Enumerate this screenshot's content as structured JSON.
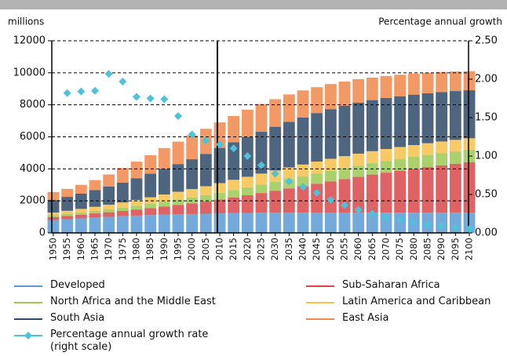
{
  "chart_data": {
    "type": "bar",
    "stacked": true,
    "y_label": "millions",
    "y2_label": "Percentage annual growth",
    "categories": [
      "1950",
      "1955",
      "1960",
      "1965",
      "1970",
      "1975",
      "1980",
      "1985",
      "1990",
      "1995",
      "2000",
      "2005",
      "2010",
      "2015",
      "2020",
      "2025",
      "2030",
      "2035",
      "2040",
      "2045",
      "2050",
      "2055",
      "2060",
      "2065",
      "2070",
      "2075",
      "2080",
      "2085",
      "2090",
      "2095",
      "2100"
    ],
    "ylim": [
      0,
      12000
    ],
    "yticks": [
      0,
      2000,
      4000,
      6000,
      8000,
      10000,
      12000
    ],
    "y2lim": [
      0,
      2.5
    ],
    "y2ticks": [
      {
        "value": 0,
        "label": "0.00"
      },
      {
        "value": 0.5,
        "label": "0.50"
      },
      {
        "value": 1,
        "label": "1.00"
      },
      {
        "value": 1.5,
        "label": "1.50"
      },
      {
        "value": 2,
        "label": "2.00"
      },
      {
        "value": 2.5,
        "label": "2.50"
      }
    ],
    "grid": true,
    "series": [
      {
        "name": "Developed",
        "color": "#5b9bd5",
        "values": [
          810,
          860,
          910,
          960,
          1000,
          1040,
          1080,
          1110,
          1140,
          1160,
          1180,
          1200,
          1220,
          1240,
          1250,
          1260,
          1265,
          1270,
          1270,
          1270,
          1270,
          1270,
          1270,
          1270,
          1265,
          1265,
          1260,
          1260,
          1260,
          1260,
          1260
        ]
      },
      {
        "name": "Sub-Saharan Africa",
        "color": "#d9474a",
        "values": [
          180,
          200,
          230,
          260,
          290,
          330,
          380,
          440,
          510,
          590,
          670,
          760,
          860,
          980,
          1100,
          1230,
          1370,
          1510,
          1650,
          1800,
          1950,
          2090,
          2230,
          2370,
          2500,
          2620,
          2740,
          2850,
          2960,
          3060,
          3160
        ]
      },
      {
        "name": "North Africa and the Middle East",
        "color": "#9cc952",
        "values": [
          110,
          125,
          140,
          160,
          180,
          205,
          235,
          270,
          300,
          335,
          365,
          395,
          430,
          465,
          500,
          535,
          565,
          595,
          620,
          645,
          665,
          685,
          700,
          715,
          730,
          740,
          750,
          760,
          765,
          770,
          775
        ]
      },
      {
        "name": "Latin America and Caribbean",
        "color": "#f6c14a",
        "values": [
          170,
          195,
          220,
          250,
          290,
          325,
          365,
          405,
          445,
          485,
          525,
          560,
          600,
          630,
          655,
          680,
          700,
          715,
          730,
          740,
          745,
          750,
          750,
          750,
          745,
          740,
          735,
          730,
          725,
          720,
          715
        ]
      },
      {
        "name": "South Asia",
        "color": "#2f4a68",
        "values": [
          800,
          870,
          950,
          1040,
          1140,
          1240,
          1350,
          1470,
          1600,
          1730,
          1860,
          2020,
          2200,
          2340,
          2480,
          2610,
          2730,
          2840,
          2940,
          3030,
          3100,
          3150,
          3180,
          3190,
          3190,
          3170,
          3150,
          3120,
          3090,
          3050,
          3000
        ]
      },
      {
        "name": "East Asia",
        "color": "#f0874a",
        "values": [
          480,
          500,
          550,
          630,
          750,
          910,
          1040,
          1155,
          1305,
          1400,
          1500,
          1565,
          1590,
          1645,
          1715,
          1735,
          1720,
          1720,
          1690,
          1615,
          1570,
          1505,
          1470,
          1405,
          1370,
          1345,
          1315,
          1280,
          1250,
          1220,
          1190
        ]
      },
      {
        "name": "Percentage annual growth rate (right scale)",
        "color": "#4cc3d8",
        "axis": "y2",
        "marker": "diamond",
        "values": [
          null,
          1.82,
          1.84,
          1.85,
          2.07,
          1.97,
          1.77,
          1.75,
          1.74,
          1.52,
          1.28,
          1.2,
          1.15,
          1.1,
          1.0,
          0.88,
          0.77,
          0.67,
          0.6,
          0.52,
          0.43,
          0.36,
          0.3,
          0.25,
          0.2,
          0.17,
          0.13,
          0.11,
          0.09,
          0.07,
          0.05
        ]
      }
    ],
    "legend_order": [
      0,
      1,
      2,
      3,
      4,
      5,
      6
    ]
  }
}
